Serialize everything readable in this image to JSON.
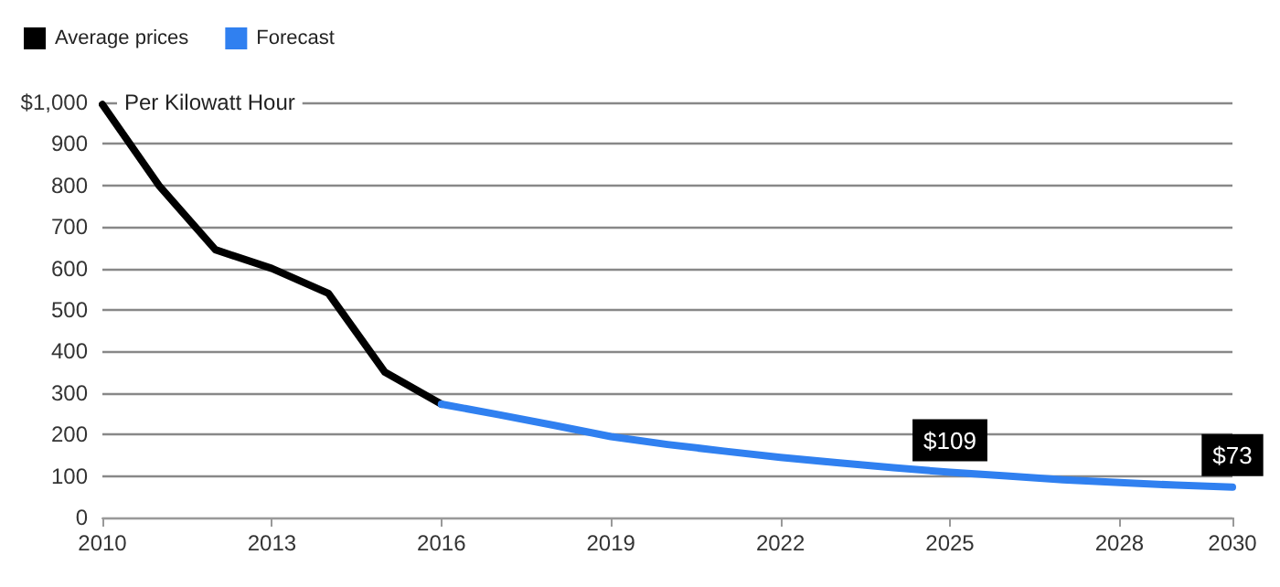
{
  "chart_data": {
    "type": "line",
    "ylabel": "Per Kilowatt Hour",
    "series": [
      {
        "name": "Average prices",
        "color": "#000000",
        "x": [
          2010,
          2011,
          2012,
          2013,
          2014,
          2015,
          2016
        ],
        "values": [
          995,
          800,
          645,
          600,
          540,
          350,
          273
        ]
      },
      {
        "name": "Forecast",
        "color": "#3080f0",
        "x": [
          2016,
          2017,
          2018,
          2019,
          2020,
          2021,
          2022,
          2023,
          2024,
          2025,
          2026,
          2027,
          2028,
          2029,
          2030
        ],
        "values": [
          273,
          248,
          222,
          195,
          176,
          160,
          145,
          132,
          120,
          109,
          100,
          91,
          84,
          78,
          73
        ]
      }
    ],
    "annotations": [
      {
        "text": "$109",
        "x": 2025,
        "y": 109
      },
      {
        "text": "$73",
        "x": 2030,
        "y": 73
      }
    ],
    "xlim": [
      2010,
      2030
    ],
    "xticks": [
      2010,
      2013,
      2016,
      2019,
      2022,
      2025,
      2028,
      2030
    ],
    "ylim": [
      0,
      1000
    ],
    "yticks": [
      0,
      100,
      200,
      300,
      400,
      500,
      600,
      700,
      800,
      900,
      {
        "value": 1000,
        "label": "$1,000"
      }
    ],
    "grid": "y",
    "legend": "top left",
    "marker": "none",
    "line_style": "solid"
  }
}
